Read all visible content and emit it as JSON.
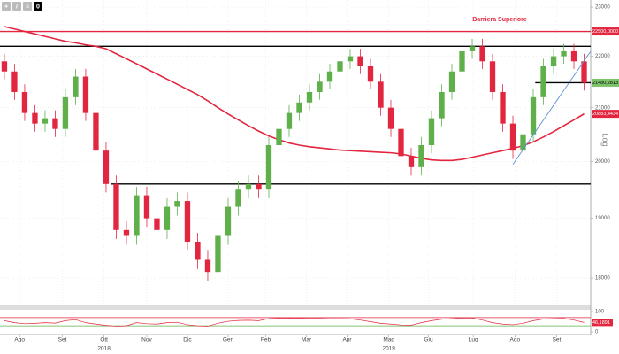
{
  "chart_data": {
    "type": "candlestick",
    "annotation": "Barriera Superiore",
    "scale_label": "Log",
    "log": true,
    "grid": true,
    "toolbar": [
      "+",
      "/",
      "≡",
      "0"
    ],
    "up_color": "#5fb04a",
    "down_color": "#e3263f",
    "xlim": [
      -0.43,
      57.65
    ],
    "ylim": [
      17560,
      23150
    ],
    "yticks": [
      18000,
      19000,
      20000,
      21000,
      22000,
      23000
    ],
    "xticks": [
      {
        "value": 1.5,
        "label": "Ago"
      },
      {
        "value": 5.7,
        "label": "Set"
      },
      {
        "value": 9.8,
        "label": "Ott"
      },
      {
        "value": 14,
        "label": "Nov"
      },
      {
        "value": 18,
        "label": "Dic"
      },
      {
        "value": 22,
        "label": "Gen"
      },
      {
        "value": 25.7,
        "label": "Feb"
      },
      {
        "value": 29.7,
        "label": "Mar"
      },
      {
        "value": 33.7,
        "label": "Apr"
      },
      {
        "value": 37.8,
        "label": "Mag"
      },
      {
        "value": 41.7,
        "label": "Giu"
      },
      {
        "value": 46.1,
        "label": "Lug"
      },
      {
        "value": 50.2,
        "label": "Ago"
      },
      {
        "value": 54.3,
        "label": "Set"
      }
    ],
    "year_ticks": [
      {
        "value": 9.8,
        "label": "2018"
      },
      {
        "value": 37.8,
        "label": "2019"
      }
    ],
    "candles": {
      "open": [
        21900,
        21700,
        21300,
        20900,
        20700,
        20800,
        20600,
        21200,
        21600,
        20900,
        20200,
        19600,
        18800,
        18700,
        19400,
        19000,
        18800,
        19200,
        19300,
        18600,
        18300,
        18100,
        18700,
        19200,
        19500,
        19600,
        19500,
        20300,
        20600,
        20900,
        21100,
        21300,
        21500,
        21700,
        21900,
        22000,
        21800,
        21500,
        21000,
        20600,
        20100,
        19900,
        20300,
        20800,
        21300,
        21700,
        22100,
        22200,
        21900,
        21300,
        20700,
        20200,
        20500,
        21200,
        21800,
        22000,
        22100,
        21900
      ],
      "high": [
        22050,
        21850,
        21450,
        21050,
        20950,
        20950,
        21350,
        21750,
        21750,
        21050,
        20350,
        19750,
        18950,
        19550,
        19550,
        19150,
        19350,
        19450,
        19450,
        18750,
        18450,
        18850,
        19350,
        19650,
        19750,
        19750,
        20450,
        20750,
        21050,
        21250,
        21450,
        21650,
        21850,
        22050,
        22150,
        22150,
        21950,
        21650,
        21150,
        20750,
        20250,
        20450,
        20950,
        21450,
        21850,
        22250,
        22350,
        22350,
        22050,
        21450,
        20850,
        20650,
        21350,
        21950,
        22150,
        22250,
        22250,
        22050
      ],
      "low": [
        21550,
        21150,
        20750,
        20550,
        20550,
        20450,
        20450,
        21050,
        20750,
        20050,
        19450,
        18650,
        18550,
        18550,
        18850,
        18650,
        18650,
        19050,
        18450,
        18150,
        17950,
        17950,
        18550,
        19050,
        19350,
        19350,
        19350,
        20150,
        20450,
        20750,
        20950,
        21150,
        21350,
        21550,
        21750,
        21650,
        21350,
        20850,
        20450,
        19950,
        19750,
        19750,
        20150,
        20650,
        21150,
        21550,
        21950,
        21750,
        21150,
        20550,
        20050,
        20050,
        20350,
        21050,
        21650,
        21850,
        21750,
        21330
      ],
      "close": [
        21700,
        21300,
        20900,
        20700,
        20800,
        20600,
        21200,
        21600,
        20900,
        20200,
        19600,
        18800,
        18700,
        19400,
        19000,
        18800,
        19200,
        19300,
        18600,
        18300,
        18100,
        18700,
        19200,
        19500,
        19600,
        19500,
        20300,
        20600,
        20900,
        21100,
        21300,
        21500,
        21700,
        21900,
        22000,
        21800,
        21500,
        21000,
        20600,
        20100,
        19900,
        20300,
        20800,
        21300,
        21700,
        22100,
        22200,
        21900,
        21300,
        20700,
        20200,
        20500,
        21200,
        21800,
        22000,
        22100,
        21900,
        21480.2813
      ],
      "value_labels": [
        null,
        null,
        null,
        null,
        null,
        null,
        null,
        null,
        null,
        null,
        null,
        null,
        null,
        null,
        null,
        null,
        null,
        null,
        null,
        null,
        null,
        null,
        null,
        null,
        null,
        null,
        null,
        null,
        null,
        null,
        null,
        null,
        null,
        null,
        null,
        null,
        null,
        null,
        null,
        null,
        null,
        null,
        null,
        null,
        null,
        null,
        null,
        null,
        null,
        null,
        null,
        null,
        null,
        null,
        null,
        null,
        null,
        "21480,2813"
      ],
      "label_color": "#7cc36a"
    },
    "ma": {
      "color": "#e3263f",
      "values": [
        22600,
        22550,
        22500,
        22450,
        22400,
        22350,
        22300,
        22270,
        22230,
        22200,
        22150,
        22050,
        21950,
        21850,
        21750,
        21650,
        21550,
        21450,
        21350,
        21250,
        21130,
        21000,
        20880,
        20770,
        20660,
        20560,
        20470,
        20400,
        20340,
        20300,
        20270,
        20250,
        20230,
        20210,
        20200,
        20190,
        20180,
        20170,
        20160,
        20140,
        20100,
        20060,
        20030,
        20020,
        20020,
        20040,
        20080,
        20120,
        20160,
        20200,
        20240,
        20290,
        20360,
        20450,
        20550,
        20660,
        20770,
        20883.4434
      ],
      "value_labels": [
        null,
        null,
        null,
        null,
        null,
        null,
        null,
        null,
        null,
        null,
        null,
        null,
        null,
        null,
        null,
        null,
        null,
        null,
        null,
        null,
        null,
        null,
        null,
        null,
        null,
        null,
        null,
        null,
        null,
        null,
        null,
        null,
        null,
        null,
        null,
        null,
        null,
        null,
        null,
        null,
        null,
        null,
        null,
        null,
        null,
        null,
        null,
        null,
        null,
        null,
        null,
        null,
        null,
        null,
        null,
        null,
        null,
        "20883,4434"
      ]
    },
    "levels": [
      {
        "value": 22500,
        "label": "22500,0000",
        "color": "#e3263f",
        "from": -0.43
      },
      {
        "value": 22200,
        "color": "#000000",
        "from": -0.43
      },
      {
        "value": 19600,
        "color": "#000000",
        "from": 10.5
      },
      {
        "value": 21480.2813,
        "color": "#000000",
        "from": 52.2
      }
    ],
    "trendline": {
      "x": [
        50,
        57.65
      ],
      "y": [
        19950,
        22100
      ],
      "color": "#5b8fd6"
    },
    "rsi": {
      "ylim": [
        0,
        100
      ],
      "yticks": [
        0,
        100
      ],
      "bands": [
        {
          "value": 70,
          "color": "#e3263f"
        },
        {
          "value": 30,
          "color": "#5fb04a"
        }
      ],
      "color": "#e3263f",
      "values": [
        55,
        45,
        40,
        42,
        45,
        43,
        55,
        60,
        45,
        38,
        32,
        28,
        30,
        45,
        40,
        38,
        45,
        47,
        35,
        30,
        28,
        42,
        52,
        56,
        57,
        55,
        65,
        67,
        68,
        67,
        66,
        66,
        65,
        65,
        64,
        58,
        50,
        42,
        38,
        34,
        33,
        45,
        55,
        62,
        65,
        68,
        68,
        58,
        45,
        38,
        35,
        42,
        55,
        63,
        65,
        66,
        58,
        46.1891
      ],
      "value_labels": [
        null,
        null,
        null,
        null,
        null,
        null,
        null,
        null,
        null,
        null,
        null,
        null,
        null,
        null,
        null,
        null,
        null,
        null,
        null,
        null,
        null,
        null,
        null,
        null,
        null,
        null,
        null,
        null,
        null,
        null,
        null,
        null,
        null,
        null,
        null,
        null,
        null,
        null,
        null,
        null,
        null,
        null,
        null,
        null,
        null,
        null,
        null,
        null,
        null,
        null,
        null,
        null,
        null,
        null,
        null,
        null,
        null,
        "46,1891"
      ]
    }
  }
}
